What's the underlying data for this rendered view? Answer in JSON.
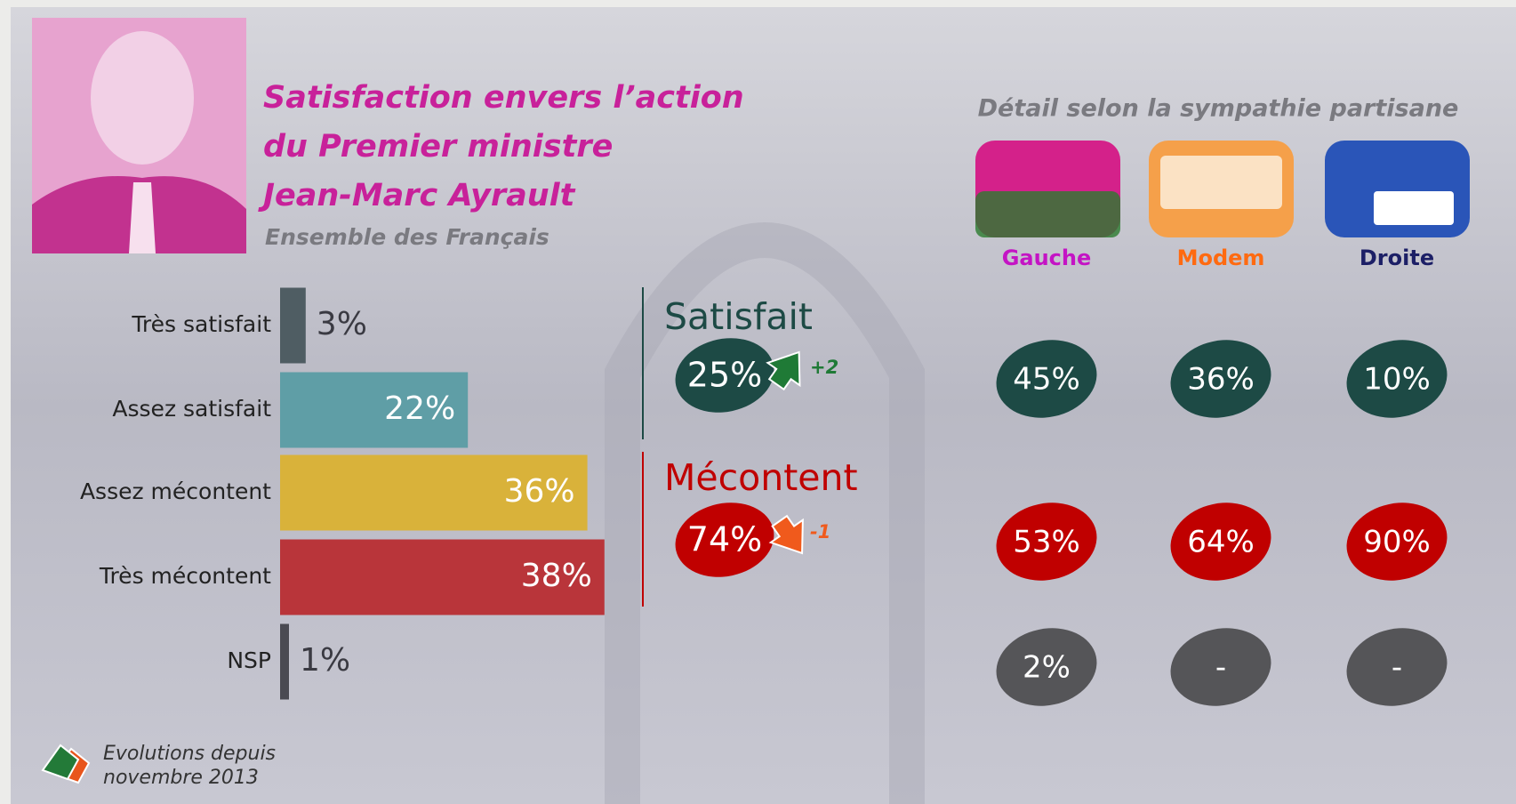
{
  "chart_data": {
    "type": "bar",
    "title": [
      "Satisfaction envers l’action",
      "du Premier ministre",
      "Jean-Marc Ayrault"
    ],
    "subtitle": "Ensemble des Français",
    "categories": [
      "Très satisfait",
      "Assez satisfait",
      "Assez mécontent",
      "Très mécontent",
      "NSP"
    ],
    "values": [
      3,
      22,
      36,
      38,
      1
    ],
    "value_labels": [
      "3%",
      "22%",
      "36%",
      "38%",
      "1%"
    ],
    "colors": [
      "#4f5d63",
      "#5f9ea6",
      "#d9b23a",
      "#b9353a",
      "#4a4a52"
    ],
    "summary": [
      {
        "label": "Satisfait",
        "value": 25,
        "value_label": "25%",
        "change": 2,
        "change_label": "+2",
        "color": "#1d4a45"
      },
      {
        "label": "Mécontent",
        "value": 74,
        "value_label": "74%",
        "change": -1,
        "change_label": "-1",
        "color": "#c00000"
      }
    ],
    "breakdown_title": "Détail selon  la sympathie partisane",
    "parties": [
      {
        "name": "Gauche",
        "color": "#c414c4"
      },
      {
        "name": "Modem",
        "color": "#ff6a10"
      },
      {
        "name": "Droite",
        "color": "#1c1f66"
      }
    ],
    "breakdown": [
      {
        "color": "#1d4a45",
        "values": [
          45,
          36,
          10
        ],
        "value_labels": [
          "45%",
          "36%",
          "10%"
        ]
      },
      {
        "color": "#c00000",
        "values": [
          53,
          64,
          90
        ],
        "value_labels": [
          "53%",
          "64%",
          "90%"
        ]
      },
      {
        "color": "#555558",
        "values": [
          2,
          null,
          null
        ],
        "value_labels": [
          "2%",
          "-",
          "-"
        ]
      }
    ],
    "legend": [
      "Evolutions depuis",
      "novembre 2013"
    ]
  }
}
